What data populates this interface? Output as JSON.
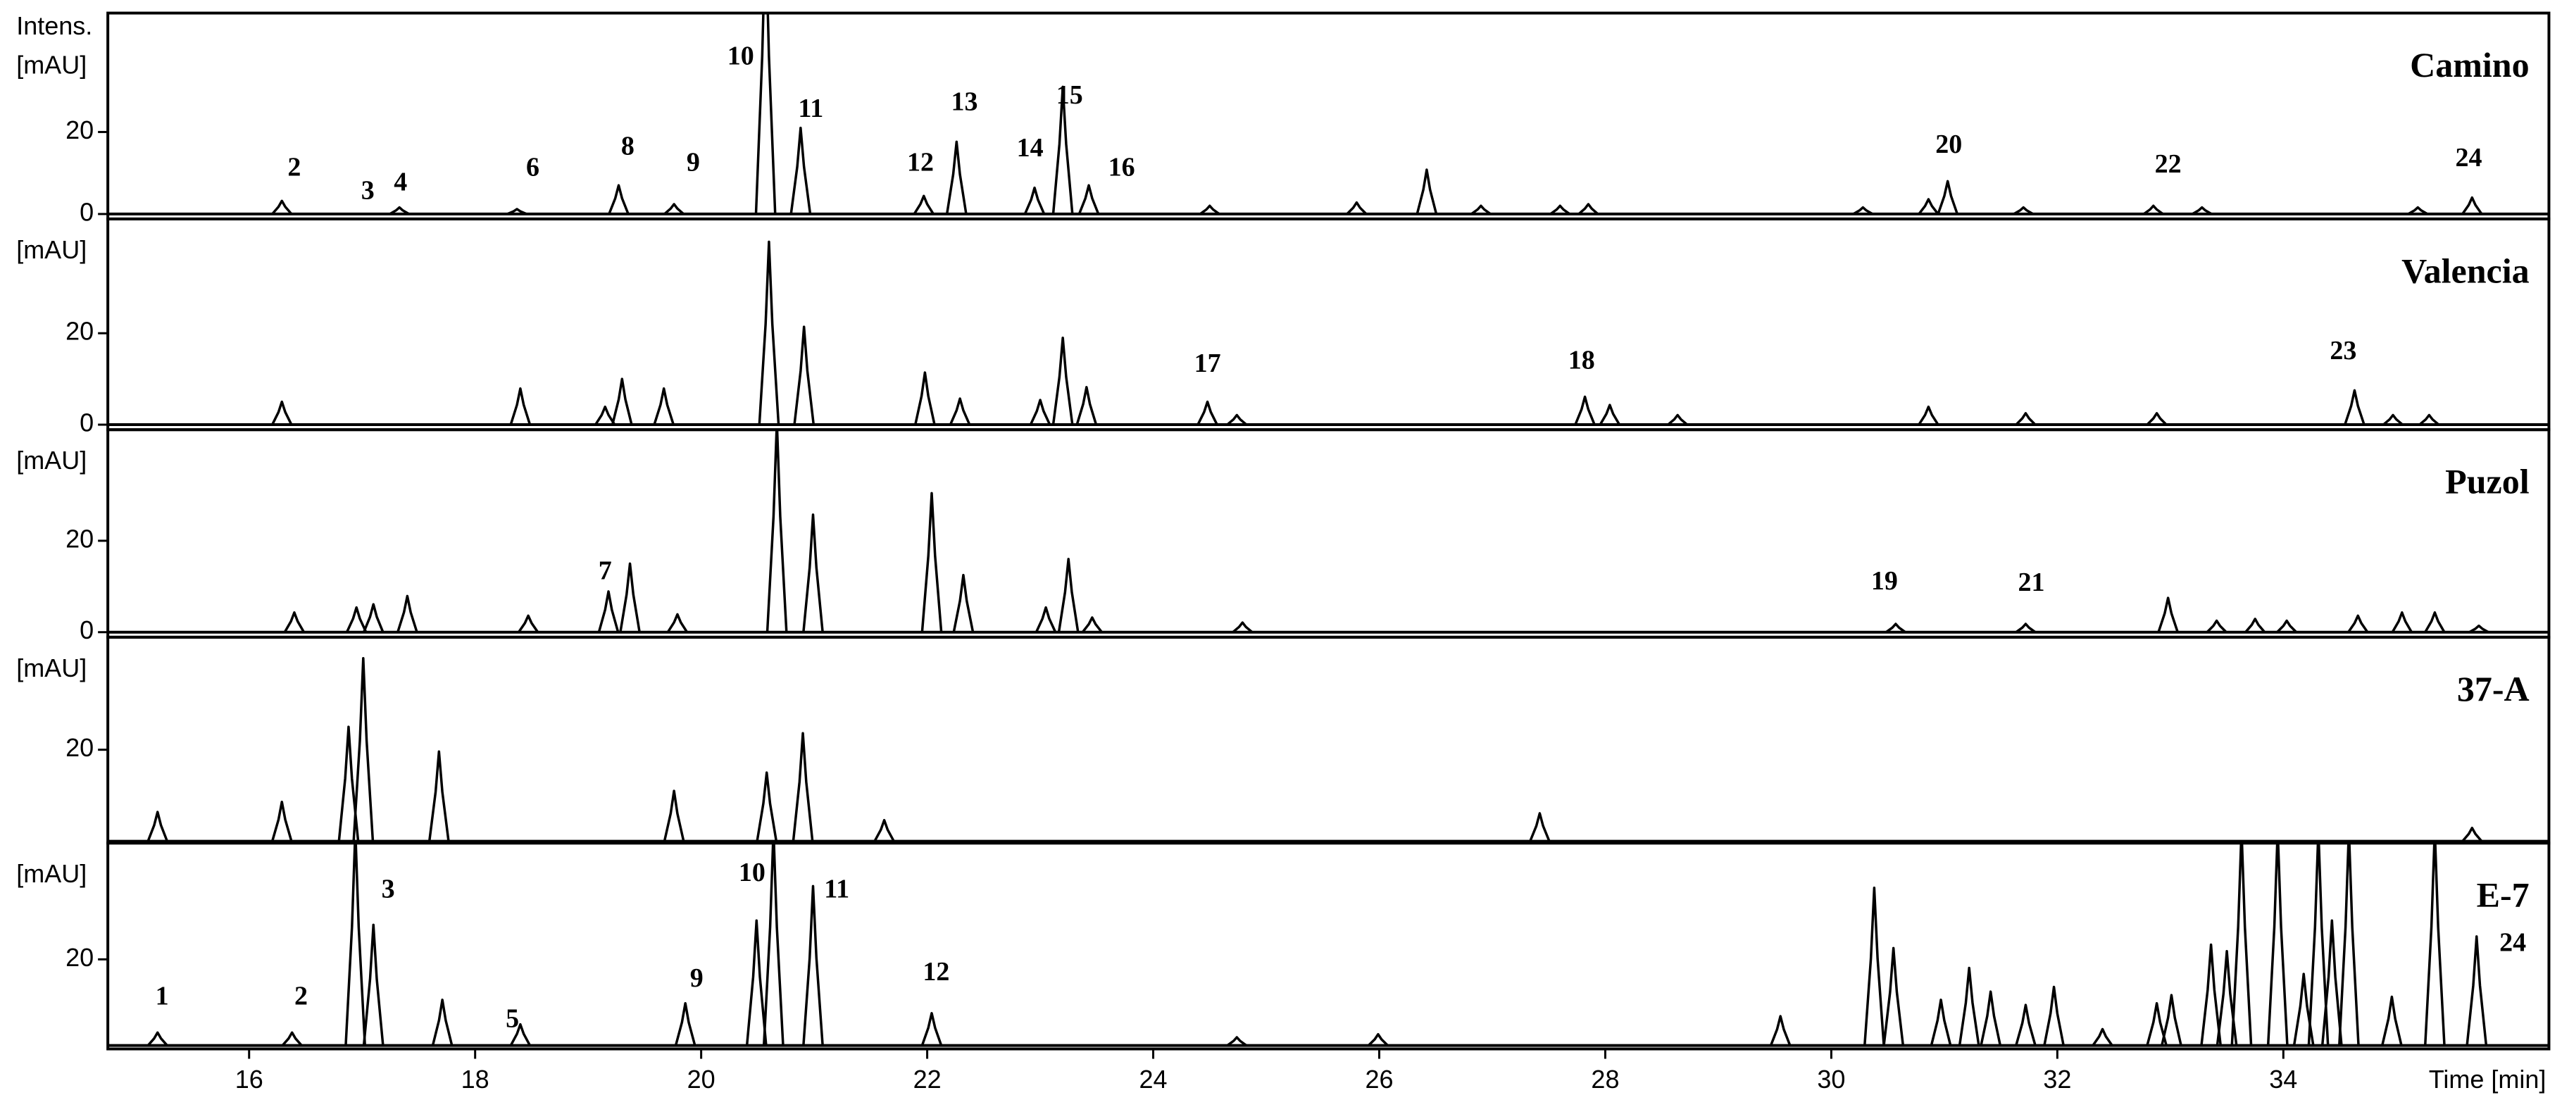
{
  "chart_data": [
    {
      "type": "chromatogram",
      "title": "Camino",
      "ylabel": [
        "Intens.",
        "[mAU]"
      ],
      "color": "#000000",
      "xlim": [
        14.75,
        36.35
      ],
      "ylim": [
        -1.2,
        49
      ],
      "yticks": [
        0,
        20
      ],
      "x": [
        16.29,
        17.33,
        18.37,
        19.27,
        19.76,
        20.57,
        20.88,
        21.97,
        22.26,
        22.95,
        23.2,
        23.43,
        24.5,
        25.8,
        26.42,
        26.9,
        27.6,
        27.85,
        30.28,
        30.86,
        31.03,
        31.7,
        32.85,
        33.28,
        35.19,
        35.67
      ],
      "values": [
        3.2,
        1.6,
        1.2,
        7,
        2.4,
        70,
        21,
        4.4,
        17.6,
        6.4,
        31,
        7,
        2,
        2.8,
        10.8,
        2,
        2,
        2.4,
        1.6,
        3.6,
        8,
        1.6,
        2,
        1.6,
        1.6,
        4
      ],
      "annotations": [
        {
          "text": "2",
          "x": 16.4,
          "y": 10.8
        },
        {
          "text": "3",
          "x": 17.05,
          "y": 5.2
        },
        {
          "text": "4",
          "x": 17.34,
          "y": 7.2
        },
        {
          "text": "6",
          "x": 18.51,
          "y": 10.8
        },
        {
          "text": "8",
          "x": 19.35,
          "y": 16
        },
        {
          "text": "9",
          "x": 19.93,
          "y": 12
        },
        {
          "text": "10",
          "x": 20.35,
          "y": 38
        },
        {
          "text": "11",
          "x": 20.97,
          "y": 25.2
        },
        {
          "text": "12",
          "x": 21.94,
          "y": 12
        },
        {
          "text": "13",
          "x": 22.33,
          "y": 26.8
        },
        {
          "text": "14",
          "x": 22.91,
          "y": 15.6
        },
        {
          "text": "15",
          "x": 23.26,
          "y": 28.4
        },
        {
          "text": "16",
          "x": 23.72,
          "y": 10.8
        },
        {
          "text": "20",
          "x": 31.04,
          "y": 16.4
        },
        {
          "text": "22",
          "x": 32.98,
          "y": 11.6
        },
        {
          "text": "24",
          "x": 35.64,
          "y": 13.2
        }
      ]
    },
    {
      "type": "chromatogram",
      "title": "Valencia",
      "ylabel": [
        "[mAU]"
      ],
      "color": "#000000",
      "xlim": [
        14.75,
        36.35
      ],
      "ylim": [
        -1.1,
        45
      ],
      "yticks": [
        0,
        20
      ],
      "x": [
        16.29,
        18.4,
        19.15,
        19.3,
        19.67,
        20.6,
        20.91,
        21.98,
        22.29,
        23.0,
        23.2,
        23.41,
        24.48,
        24.74,
        27.82,
        28.04,
        28.64,
        30.86,
        31.72,
        32.88,
        34.63,
        34.97,
        35.29
      ],
      "values": [
        5,
        7.9,
        3.9,
        10,
        7.9,
        40,
        21.4,
        11.4,
        5.7,
        5.4,
        19,
        8.2,
        5,
        2.1,
        6.1,
        4.3,
        2.1,
        3.9,
        2.5,
        2.5,
        7.5,
        2.1,
        2.1
      ],
      "annotations": [
        {
          "text": "17",
          "x": 24.48,
          "y": 12.9
        },
        {
          "text": "18",
          "x": 27.79,
          "y": 13.6
        },
        {
          "text": "23",
          "x": 34.53,
          "y": 15.7
        }
      ]
    },
    {
      "type": "chromatogram",
      "title": "Puzol",
      "ylabel": [
        "[mAU]"
      ],
      "color": "#000000",
      "xlim": [
        14.75,
        36.35
      ],
      "ylim": [
        -1.1,
        44.3
      ],
      "yticks": [
        0,
        20
      ],
      "x": [
        16.4,
        16.95,
        17.1,
        17.4,
        18.47,
        19.18,
        19.37,
        19.79,
        20.67,
        20.99,
        22.04,
        22.32,
        23.05,
        23.25,
        23.46,
        24.79,
        30.57,
        31.72,
        32.98,
        33.41,
        33.75,
        34.03,
        34.66,
        35.05,
        35.34,
        35.73
      ],
      "values": [
        4.3,
        5.4,
        6.1,
        7.9,
        3.6,
        8.9,
        15,
        3.9,
        46,
        25.7,
        30.4,
        12.5,
        5.4,
        16,
        3.2,
        2.1,
        1.8,
        1.8,
        7.5,
        2.5,
        2.9,
        2.5,
        3.6,
        4.3,
        4.3,
        1.4
      ],
      "annotations": [
        {
          "text": "7",
          "x": 19.15,
          "y": 12.9
        },
        {
          "text": "19",
          "x": 30.47,
          "y": 10.7
        },
        {
          "text": "21",
          "x": 31.77,
          "y": 10.4
        }
      ]
    },
    {
      "type": "chromatogram",
      "title": "37-A",
      "ylabel": [
        "[mAU]"
      ],
      "color": "#000000",
      "xlim": [
        14.75,
        36.35
      ],
      "ylim": [
        -0.4,
        44.6
      ],
      "yticks": [
        20
      ],
      "x": [
        15.19,
        16.29,
        16.88,
        17.01,
        17.68,
        19.76,
        20.58,
        20.9,
        21.62,
        27.42,
        35.67
      ],
      "values": [
        6.4,
        8.6,
        25,
        40,
        19.6,
        11,
        15,
        23.6,
        4.6,
        6.1,
        2.9
      ],
      "annotations": []
    },
    {
      "type": "chromatogram",
      "title": "E-7",
      "ylabel": [
        "[mAU]"
      ],
      "color": "#000000",
      "xlim": [
        14.75,
        36.35
      ],
      "ylim": [
        -0.8,
        47
      ],
      "yticks": [
        20
      ],
      "xticks": [
        16,
        18,
        20,
        22,
        24,
        26,
        28,
        30,
        32,
        34
      ],
      "xlabel": "Time [min]",
      "x": [
        15.19,
        16.38,
        16.94,
        17.1,
        17.71,
        18.4,
        19.86,
        20.49,
        20.64,
        20.99,
        22.04,
        24.74,
        25.99,
        29.55,
        30.38,
        30.55,
        30.97,
        31.22,
        31.41,
        31.72,
        31.97,
        32.4,
        32.88,
        33.01,
        33.36,
        33.5,
        33.63,
        33.95,
        34.18,
        34.31,
        34.43,
        34.58,
        34.96,
        35.34,
        35.71
      ],
      "values": [
        3,
        3,
        50,
        28,
        10.6,
        4.9,
        9.8,
        29,
        50,
        37,
        7.5,
        1.9,
        2.6,
        6.8,
        36.6,
        22.6,
        10.6,
        18,
        12.5,
        9.4,
        13.6,
        3.8,
        9.8,
        11.7,
        23.4,
        21.9,
        50,
        50,
        16.6,
        50,
        29,
        50,
        11.3,
        50,
        25.3
      ],
      "annotations": [
        {
          "text": "1",
          "x": 15.23,
          "y": 10.9
        },
        {
          "text": "2",
          "x": 16.46,
          "y": 10.9
        },
        {
          "text": "3",
          "x": 17.23,
          "y": 35.8
        },
        {
          "text": "5",
          "x": 18.33,
          "y": 5.7
        },
        {
          "text": "9",
          "x": 19.96,
          "y": 15.1
        },
        {
          "text": "10",
          "x": 20.45,
          "y": 39.6
        },
        {
          "text": "11",
          "x": 21.2,
          "y": 35.8
        },
        {
          "text": "12",
          "x": 22.08,
          "y": 16.6
        },
        {
          "text": "24",
          "x": 36.03,
          "y": 23.4
        }
      ]
    }
  ]
}
